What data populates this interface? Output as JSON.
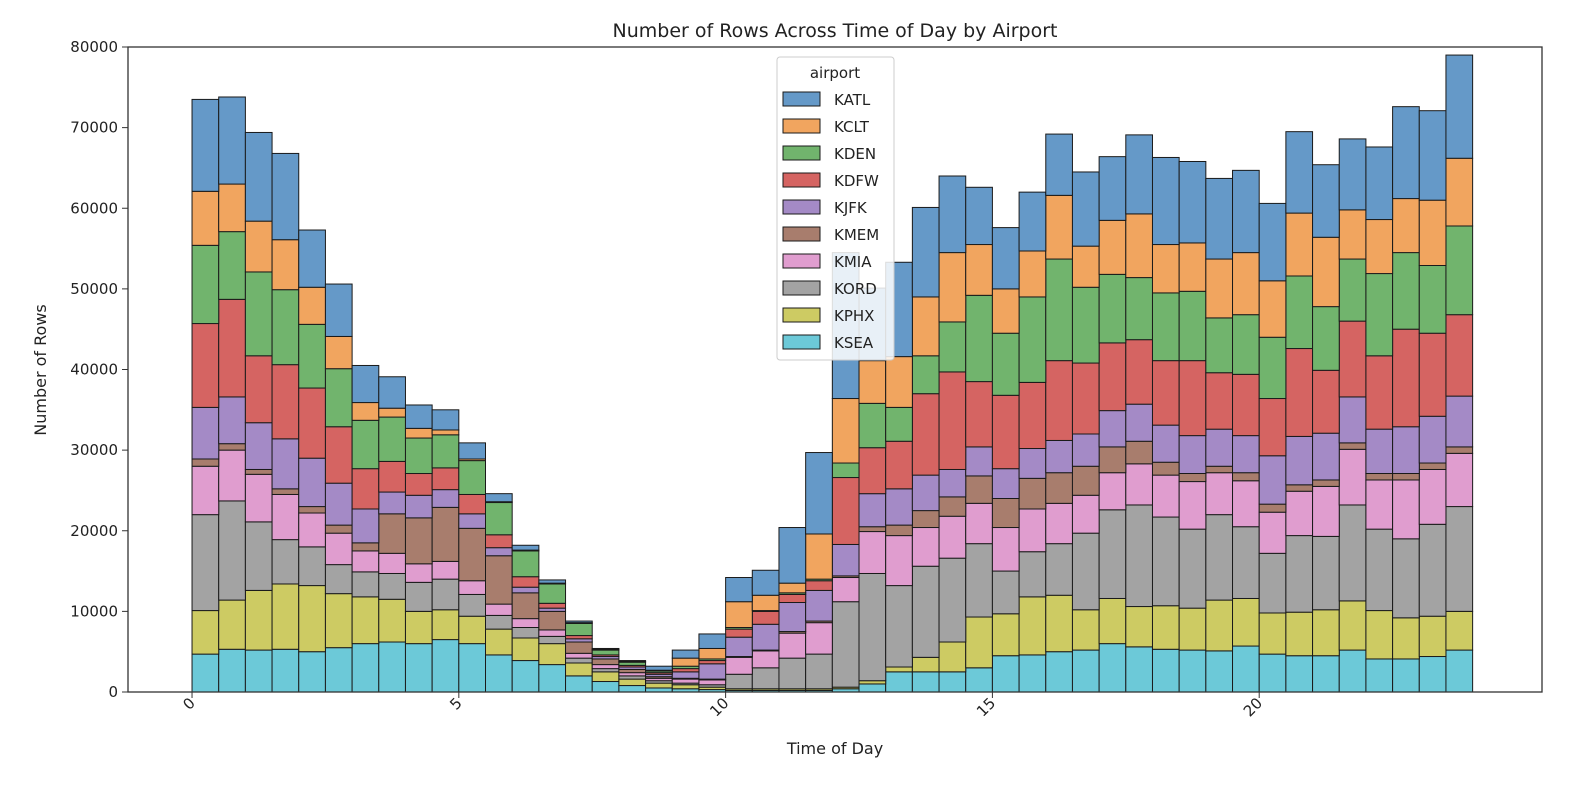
{
  "chart_data": {
    "type": "bar",
    "subtype": "stacked-histogram",
    "title": "Number of Rows Across Time of Day by Airport",
    "xlabel": "Time of Day",
    "ylabel": "Number of Rows",
    "xlim": [
      -1.2,
      25.3
    ],
    "ylim": [
      0,
      80000
    ],
    "xticks": [
      0,
      5,
      10,
      15,
      20
    ],
    "yticks": [
      0,
      10000,
      20000,
      30000,
      40000,
      50000,
      60000,
      70000,
      80000
    ],
    "bin_width": 0.5,
    "x": [
      0.0,
      0.5,
      1.0,
      1.5,
      2.0,
      2.5,
      3.0,
      3.5,
      4.0,
      4.5,
      5.0,
      5.5,
      6.0,
      6.5,
      7.0,
      7.5,
      8.0,
      8.5,
      9.0,
      9.5,
      10.0,
      10.5,
      11.0,
      11.5,
      12.0,
      12.5,
      13.0,
      13.5,
      14.0,
      14.5,
      15.0,
      15.5,
      16.0,
      16.5,
      17.0,
      17.5,
      18.0,
      18.5,
      19.0,
      19.5,
      20.0,
      20.5,
      21.0,
      21.5,
      22.0,
      22.5,
      23.0,
      23.5
    ],
    "legend": {
      "title": "airport",
      "position": "upper-center"
    },
    "grid": false,
    "series": [
      {
        "name": "KSEA",
        "color": "#6CC9D8",
        "values": [
          4700,
          5300,
          5200,
          5300,
          5000,
          5500,
          6000,
          6200,
          6000,
          6500,
          6000,
          4600,
          3900,
          3400,
          2000,
          1300,
          800,
          500,
          400,
          300,
          200,
          200,
          200,
          200,
          400,
          1000,
          2500,
          2500,
          2500,
          3000,
          4500,
          4600,
          5000,
          5200,
          6000,
          5600,
          5300,
          5200,
          5100,
          5700,
          4700,
          4500,
          4500,
          5200,
          4100,
          4100,
          4400,
          5200
        ]
      },
      {
        "name": "KPHX",
        "color": "#CDCB63",
        "values": [
          5400,
          6100,
          7400,
          8100,
          8200,
          6700,
          5800,
          5300,
          4000,
          3700,
          3400,
          3200,
          2800,
          2600,
          1600,
          1200,
          800,
          600,
          500,
          300,
          200,
          200,
          200,
          200,
          200,
          400,
          600,
          1800,
          3700,
          6300,
          5200,
          7200,
          7000,
          5000,
          5600,
          5000,
          5400,
          5200,
          6300,
          5900,
          5100,
          5400,
          5700,
          6100,
          6000,
          5100,
          5000,
          4800
        ]
      },
      {
        "name": "KORD",
        "color": "#A3A3A3",
        "values": [
          11900,
          12300,
          8500,
          5500,
          4800,
          3600,
          3100,
          3200,
          3600,
          3800,
          2700,
          1700,
          1300,
          900,
          600,
          400,
          400,
          300,
          200,
          300,
          1800,
          2600,
          3800,
          4300,
          10600,
          13300,
          10100,
          11300,
          10400,
          9100,
          5300,
          5600,
          6400,
          9500,
          11000,
          12600,
          11000,
          9800,
          10600,
          8900,
          7400,
          9500,
          9100,
          11900,
          10100,
          9800,
          11400,
          13000
        ]
      },
      {
        "name": "KMIA",
        "color": "#E09DCF",
        "values": [
          6000,
          6300,
          5900,
          5600,
          4200,
          3900,
          2600,
          2500,
          2300,
          2200,
          1700,
          1400,
          1100,
          800,
          600,
          500,
          400,
          300,
          500,
          600,
          2100,
          2100,
          3100,
          3900,
          3000,
          5200,
          6200,
          4800,
          5200,
          5000,
          5400,
          5300,
          5000,
          4700,
          4600,
          5100,
          5200,
          5900,
          5200,
          5700,
          5100,
          5500,
          6200,
          6900,
          6100,
          7300,
          6800,
          6600
        ]
      },
      {
        "name": "KMEM",
        "color": "#A87D6D",
        "values": [
          900,
          800,
          600,
          700,
          800,
          1000,
          1000,
          4900,
          5700,
          6700,
          6500,
          6000,
          3200,
          2300,
          1400,
          700,
          400,
          200,
          100,
          100,
          100,
          100,
          200,
          200,
          200,
          600,
          1300,
          2100,
          2400,
          3400,
          3600,
          3800,
          3800,
          3600,
          3200,
          2800,
          1600,
          1000,
          800,
          1000,
          1000,
          800,
          800,
          800,
          800,
          800,
          800,
          800
        ]
      },
      {
        "name": "KJFK",
        "color": "#A48AC6",
        "values": [
          6400,
          5800,
          5800,
          6200,
          6000,
          5200,
          4200,
          2700,
          2800,
          2200,
          1800,
          1000,
          700,
          400,
          400,
          300,
          300,
          300,
          800,
          1900,
          2400,
          3200,
          3600,
          3800,
          3900,
          4100,
          4500,
          4400,
          3400,
          3600,
          3700,
          3700,
          4000,
          4000,
          4500,
          4600,
          4600,
          4700,
          4600,
          4600,
          6000,
          6000,
          5800,
          5700,
          5500,
          5800,
          5800,
          6300
        ]
      },
      {
        "name": "KDFW",
        "color": "#D56462",
        "values": [
          10400,
          12100,
          8300,
          9200,
          8700,
          7000,
          5000,
          3800,
          2700,
          2700,
          2400,
          1600,
          1300,
          600,
          400,
          200,
          200,
          200,
          400,
          400,
          1000,
          1600,
          1000,
          1200,
          8300,
          5700,
          5900,
          10100,
          12100,
          8100,
          9100,
          8200,
          9900,
          8800,
          8400,
          8000,
          8000,
          9300,
          7000,
          7600,
          7100,
          10900,
          7800,
          9400,
          9100,
          12100,
          10300,
          10100
        ]
      },
      {
        "name": "KDEN",
        "color": "#71B46D",
        "values": [
          9700,
          8400,
          10400,
          9300,
          7900,
          7200,
          6000,
          5500,
          4400,
          4100,
          4200,
          4000,
          3200,
          2400,
          1500,
          600,
          400,
          200,
          300,
          200,
          200,
          100,
          200,
          200,
          1800,
          5500,
          4200,
          4700,
          6200,
          10700,
          7700,
          10600,
          12600,
          9400,
          8500,
          7700,
          8400,
          8600,
          6800,
          7400,
          7600,
          9000,
          7900,
          7700,
          10200,
          9500,
          8400,
          11000
        ]
      },
      {
        "name": "KCLT",
        "color": "#F1A55F",
        "values": [
          6700,
          5900,
          6300,
          6200,
          4600,
          4000,
          2200,
          1100,
          1200,
          600,
          200,
          100,
          100,
          100,
          100,
          100,
          100,
          100,
          1000,
          1300,
          3200,
          1900,
          1200,
          5600,
          8000,
          5300,
          6300,
          7300,
          8600,
          6300,
          5500,
          5700,
          7900,
          5100,
          6700,
          7900,
          6000,
          6000,
          7300,
          7700,
          7000,
          7800,
          8600,
          6100,
          6700,
          6700,
          8100,
          8400
        ]
      },
      {
        "name": "KATL",
        "color": "#6599C8",
        "values": [
          11400,
          10800,
          11000,
          10700,
          7100,
          6500,
          4600,
          3900,
          2900,
          2500,
          2000,
          1000,
          600,
          400,
          200,
          100,
          100,
          500,
          1000,
          1800,
          3000,
          3100,
          6900,
          10100,
          18100,
          9000,
          11700,
          11100,
          9500,
          7100,
          7600,
          7300,
          7600,
          9200,
          7900,
          9800,
          10800,
          10100,
          10000,
          10200,
          9600,
          10100,
          9000,
          8800,
          9000,
          11400,
          11100,
          12800
        ]
      }
    ]
  }
}
